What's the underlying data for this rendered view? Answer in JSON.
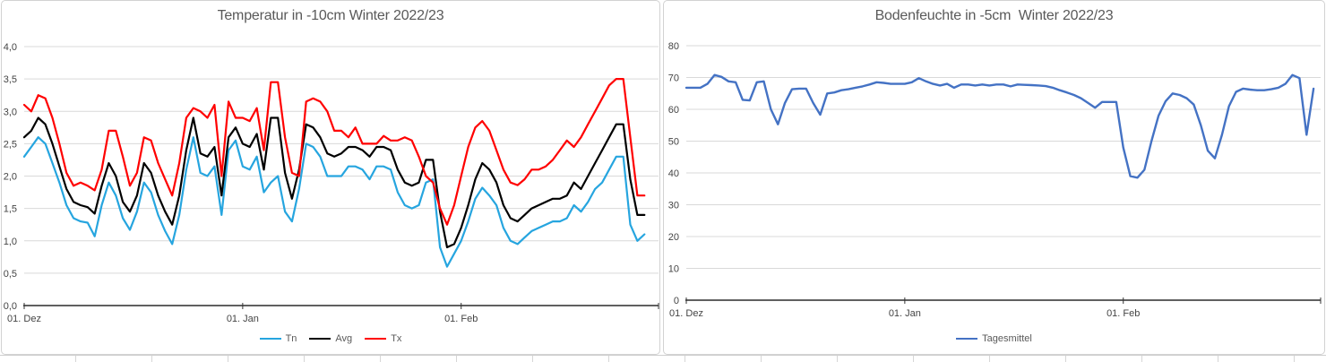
{
  "chart_data": [
    {
      "type": "line",
      "title": "Temperatur in -10cm Winter 2022/23",
      "xlabel": "",
      "ylabel": "",
      "ylim": [
        0,
        4
      ],
      "grid": true,
      "legend_position": "bottom",
      "y_ticks": [
        {
          "v": 0.0,
          "label": "0,0"
        },
        {
          "v": 0.5,
          "label": "0,5"
        },
        {
          "v": 1.0,
          "label": "1,0"
        },
        {
          "v": 1.5,
          "label": "1,5"
        },
        {
          "v": 2.0,
          "label": "2,0"
        },
        {
          "v": 2.5,
          "label": "2,5"
        },
        {
          "v": 3.0,
          "label": "3,0"
        },
        {
          "v": 3.5,
          "label": "3,5"
        },
        {
          "v": 4.0,
          "label": "4,0"
        }
      ],
      "x_axis_days": 90,
      "x_ticks": [
        {
          "day": 0,
          "label": "01. Dez"
        },
        {
          "day": 31,
          "label": "01. Jan"
        },
        {
          "day": 62,
          "label": "01. Feb"
        },
        {
          "day": 90,
          "label": ""
        }
      ],
      "series": [
        {
          "name": "Tn",
          "color": "#26A5DF",
          "values": [
            2.3,
            2.45,
            2.6,
            2.5,
            2.2,
            1.9,
            1.55,
            1.35,
            1.3,
            1.28,
            1.07,
            1.55,
            1.9,
            1.7,
            1.35,
            1.17,
            1.45,
            1.9,
            1.75,
            1.4,
            1.15,
            0.95,
            1.4,
            2.1,
            2.6,
            2.05,
            2.0,
            2.15,
            1.4,
            2.4,
            2.55,
            2.15,
            2.1,
            2.3,
            1.75,
            1.9,
            2.0,
            1.45,
            1.3,
            1.8,
            2.5,
            2.45,
            2.3,
            2.0,
            2.0,
            2.0,
            2.15,
            2.15,
            2.1,
            1.95,
            2.15,
            2.15,
            2.1,
            1.75,
            1.55,
            1.5,
            1.55,
            1.9,
            1.95,
            0.9,
            0.6,
            0.8,
            1.0,
            1.3,
            1.65,
            1.82,
            1.7,
            1.55,
            1.2,
            1.0,
            0.95,
            1.05,
            1.15,
            1.2,
            1.25,
            1.3,
            1.3,
            1.35,
            1.55,
            1.45,
            1.6,
            1.8,
            1.9,
            2.1,
            2.3,
            2.3,
            1.25,
            1.0,
            1.1
          ]
        },
        {
          "name": "Avg",
          "color": "#000000",
          "values": [
            2.6,
            2.7,
            2.9,
            2.8,
            2.5,
            2.15,
            1.8,
            1.6,
            1.55,
            1.52,
            1.42,
            1.85,
            2.2,
            2.0,
            1.6,
            1.45,
            1.7,
            2.2,
            2.05,
            1.7,
            1.45,
            1.25,
            1.7,
            2.4,
            2.9,
            2.35,
            2.3,
            2.45,
            1.7,
            2.6,
            2.75,
            2.5,
            2.45,
            2.65,
            2.1,
            2.9,
            2.9,
            2.05,
            1.65,
            2.1,
            2.8,
            2.75,
            2.6,
            2.35,
            2.3,
            2.35,
            2.45,
            2.45,
            2.4,
            2.3,
            2.45,
            2.45,
            2.4,
            2.1,
            1.9,
            1.85,
            1.9,
            2.25,
            2.25,
            1.45,
            0.9,
            0.95,
            1.2,
            1.55,
            1.95,
            2.2,
            2.1,
            1.9,
            1.55,
            1.35,
            1.3,
            1.4,
            1.5,
            1.55,
            1.6,
            1.65,
            1.65,
            1.7,
            1.9,
            1.8,
            2.0,
            2.2,
            2.4,
            2.6,
            2.8,
            2.8,
            1.95,
            1.4,
            1.4
          ]
        },
        {
          "name": "Tx",
          "color": "#FF0000",
          "values": [
            3.1,
            3.0,
            3.25,
            3.2,
            2.9,
            2.5,
            2.05,
            1.85,
            1.9,
            1.85,
            1.78,
            2.1,
            2.7,
            2.7,
            2.3,
            1.85,
            2.05,
            2.6,
            2.55,
            2.2,
            1.95,
            1.7,
            2.2,
            2.9,
            3.05,
            3.0,
            2.9,
            3.1,
            2.0,
            3.15,
            2.9,
            2.9,
            2.85,
            3.05,
            2.4,
            3.45,
            3.45,
            2.6,
            2.05,
            2.0,
            3.15,
            3.2,
            3.15,
            3.0,
            2.7,
            2.7,
            2.6,
            2.75,
            2.5,
            2.5,
            2.5,
            2.62,
            2.55,
            2.55,
            2.6,
            2.55,
            2.3,
            2.0,
            1.9,
            1.5,
            1.25,
            1.55,
            2.0,
            2.45,
            2.75,
            2.85,
            2.7,
            2.4,
            2.1,
            1.9,
            1.86,
            1.95,
            2.1,
            2.1,
            2.15,
            2.25,
            2.4,
            2.55,
            2.45,
            2.6,
            2.8,
            3.0,
            3.2,
            3.4,
            3.5,
            3.5,
            2.6,
            1.7,
            1.7
          ]
        }
      ]
    },
    {
      "type": "line",
      "title": "Bodenfeuchte in -5cm  Winter 2022/23",
      "xlabel": "",
      "ylabel": "",
      "ylim": [
        0,
        80
      ],
      "grid": true,
      "legend_position": "bottom",
      "y_ticks": [
        {
          "v": 0,
          "label": "0"
        },
        {
          "v": 10,
          "label": "10"
        },
        {
          "v": 20,
          "label": "20"
        },
        {
          "v": 30,
          "label": "30"
        },
        {
          "v": 40,
          "label": "40"
        },
        {
          "v": 50,
          "label": "50"
        },
        {
          "v": 60,
          "label": "60"
        },
        {
          "v": 70,
          "label": "70"
        },
        {
          "v": 80,
          "label": "80"
        }
      ],
      "x_axis_days": 90,
      "x_ticks": [
        {
          "day": 0,
          "label": "01. Dez"
        },
        {
          "day": 31,
          "label": "01. Jan"
        },
        {
          "day": 62,
          "label": "01. Feb"
        },
        {
          "day": 90,
          "label": ""
        }
      ],
      "series": [
        {
          "name": "Tagesmittel",
          "color": "#4472C4",
          "values": [
            66.8,
            66.8,
            66.8,
            68,
            70.8,
            70.2,
            68.8,
            68.5,
            63,
            62.8,
            68.5,
            68.8,
            60,
            55.3,
            62,
            66.3,
            66.5,
            66.5,
            62,
            58.3,
            65,
            65.3,
            66,
            66.3,
            66.8,
            67.2,
            67.8,
            68.5,
            68.3,
            68,
            68,
            68,
            68.5,
            69.8,
            68.8,
            68,
            67.5,
            68,
            66.8,
            67.8,
            67.8,
            67.5,
            67.8,
            67.5,
            67.8,
            67.8,
            67.2,
            67.8,
            67.7,
            67.6,
            67.5,
            67.3,
            66.8,
            66,
            65.3,
            64.5,
            63.5,
            62,
            60.5,
            62.3,
            62.3,
            62.3,
            48,
            39,
            38.5,
            41,
            50,
            58,
            62.5,
            65,
            64.5,
            63.5,
            61.5,
            55,
            47,
            44.6,
            52,
            61,
            65.5,
            66.5,
            66.2,
            66,
            66,
            66.3,
            66.8,
            68,
            70.8,
            69.8,
            52,
            66.5
          ]
        }
      ]
    }
  ]
}
